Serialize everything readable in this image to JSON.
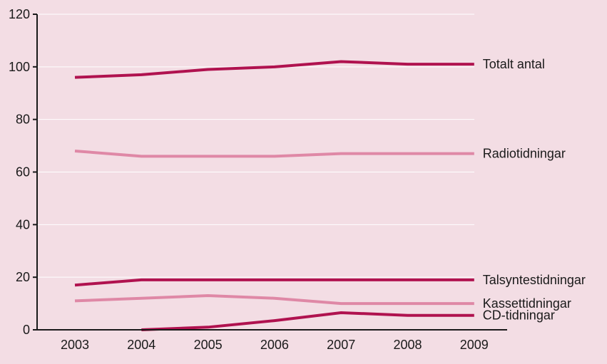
{
  "chart_data": {
    "type": "line",
    "title": "",
    "xlabel": "",
    "ylabel": "",
    "x": [
      "2003",
      "2004",
      "2005",
      "2006",
      "2007",
      "2008",
      "2009"
    ],
    "ylim": [
      0,
      120
    ],
    "yticks": [
      "0",
      "20",
      "40",
      "60",
      "80",
      "100",
      "120"
    ],
    "grid": "horizontal",
    "legend": "inline labels at right end of each line",
    "background_color": "#f3dde4",
    "series": [
      {
        "name": "Totalt antal",
        "color": "#b0124f",
        "values": [
          96,
          97,
          99,
          100,
          102,
          101,
          101
        ]
      },
      {
        "name": "Radiotidningar",
        "color": "#df88a6",
        "values": [
          68,
          66,
          66,
          66,
          67,
          67,
          67
        ]
      },
      {
        "name": "Talsyntestidningar",
        "color": "#b0124f",
        "values": [
          17,
          19,
          19,
          19,
          19,
          19,
          19
        ]
      },
      {
        "name": "Kassettidningar",
        "color": "#df88a6",
        "values": [
          11,
          12,
          13,
          12,
          10,
          10,
          10
        ]
      },
      {
        "name": "CD-tidningar",
        "color": "#b0124f",
        "values": [
          null,
          0,
          1,
          3.5,
          6.5,
          5.5,
          5.5
        ]
      }
    ]
  }
}
